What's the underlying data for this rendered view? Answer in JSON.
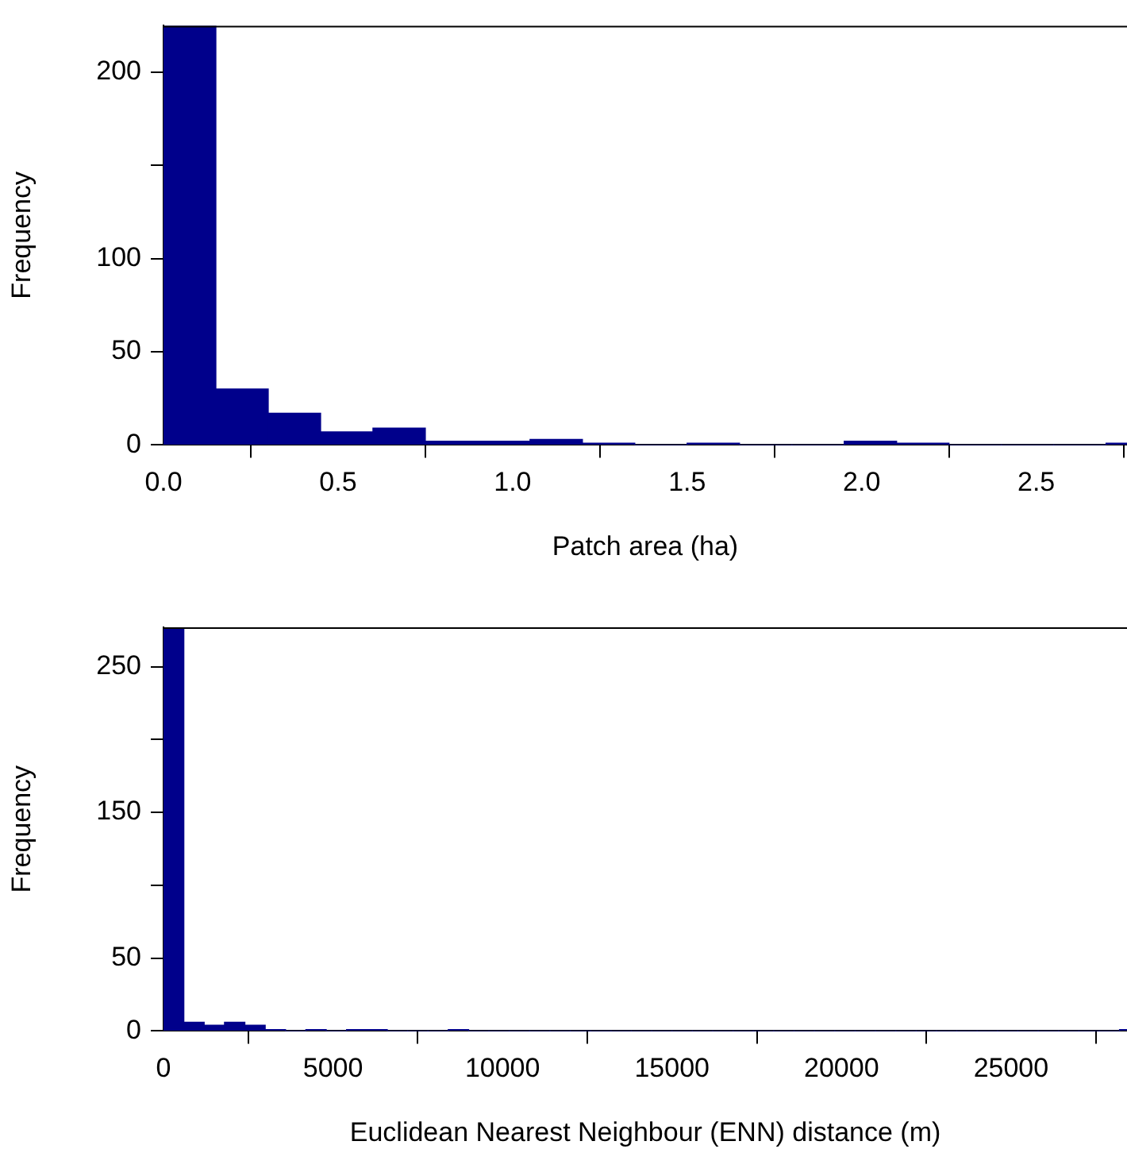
{
  "chart_data": [
    {
      "type": "histogram",
      "xlabel": "Patch area (ha)",
      "ylabel": "Frequency",
      "color": "#00008b",
      "bins": [
        0,
        0.15,
        0.3,
        0.45,
        0.6,
        0.75,
        0.9,
        1.05,
        1.2,
        1.35,
        1.5,
        1.65,
        1.8,
        1.95,
        2.1,
        2.25,
        2.4,
        2.55,
        2.7,
        2.85
      ],
      "values": [
        225,
        30,
        17,
        7,
        9,
        2,
        2,
        3,
        1,
        0,
        1,
        0,
        0,
        2,
        1,
        0,
        0,
        0,
        1
      ],
      "xlim": [
        0,
        2.76
      ],
      "xticks": [
        {
          "value": 0,
          "label": "0.0"
        },
        {
          "value": 0.5,
          "label": "0.5"
        },
        {
          "value": 1,
          "label": "1.0"
        },
        {
          "value": 1.5,
          "label": "1.5"
        },
        {
          "value": 2,
          "label": "2.0"
        },
        {
          "value": 2.5,
          "label": "2.5"
        }
      ],
      "ylim": [
        0,
        225
      ],
      "yticks": [
        0,
        50,
        100,
        {
          "value": 150,
          "label": null
        },
        200
      ],
      "grid": false,
      "legend": false
    },
    {
      "type": "histogram",
      "xlabel": "Euclidean Nearest Neighbour (ENN) distance (m)",
      "ylabel": "Frequency",
      "color": "#00008b",
      "bins": [
        0,
        600,
        1200,
        1800,
        2400,
        3000,
        3600,
        4200,
        4800,
        5400,
        6000,
        6600,
        7200,
        7800,
        8400,
        9000,
        9600,
        10200,
        10800,
        11400,
        12000,
        12600,
        13200,
        13800,
        14400,
        15000,
        15600,
        16200,
        16800,
        17400,
        18000,
        18600,
        19200,
        19800,
        20400,
        21000,
        21600,
        22200,
        22800,
        23400,
        24000,
        24600,
        25200,
        25800,
        26400,
        27000,
        27600,
        28200,
        28800
      ],
      "values": [
        277,
        6,
        4,
        6,
        4,
        1,
        0,
        1,
        0,
        1,
        1,
        0,
        0,
        0,
        1,
        0,
        0,
        0,
        0,
        0,
        0,
        0,
        0,
        0,
        0,
        0,
        0,
        0,
        0,
        0,
        0,
        0,
        0,
        0,
        0,
        0,
        0,
        0,
        0,
        0,
        0,
        0,
        0,
        0,
        0,
        0,
        0,
        1
      ],
      "xlim": [
        0,
        28420
      ],
      "xticks": [
        0,
        5000,
        10000,
        15000,
        20000,
        25000
      ],
      "ylim": [
        0,
        277
      ],
      "yticks": [
        0,
        50,
        {
          "value": 100,
          "label": null
        },
        150,
        {
          "value": 200,
          "label": null
        },
        250
      ],
      "grid": false,
      "legend": false
    }
  ]
}
